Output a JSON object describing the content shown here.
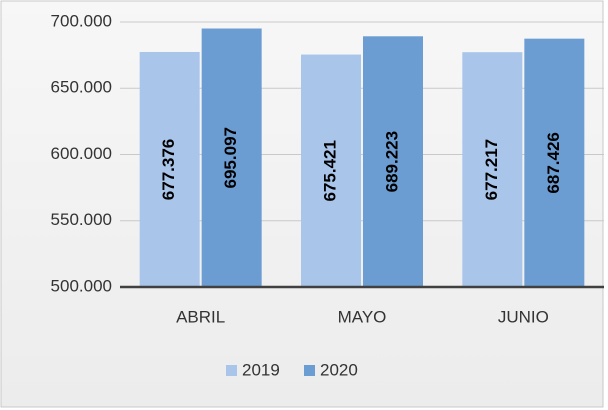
{
  "chart_data": {
    "type": "bar",
    "categories": [
      "ABRIL",
      "MAYO",
      "JUNIO"
    ],
    "series": [
      {
        "name": "2019",
        "color": "#a9c5ea",
        "values": [
          677376,
          675421,
          677217
        ],
        "value_labels": [
          "677.376",
          "675.421",
          "677.217"
        ]
      },
      {
        "name": "2020",
        "color": "#6c9dd2",
        "values": [
          695097,
          689223,
          687426
        ],
        "value_labels": [
          "695.097",
          "689.223",
          "687.426"
        ]
      }
    ],
    "ylim": [
      500000,
      700000
    ],
    "yticks": [
      {
        "value": 500000,
        "label": "500.000"
      },
      {
        "value": 550000,
        "label": "550.000"
      },
      {
        "value": 600000,
        "label": "600.000"
      },
      {
        "value": 650000,
        "label": "650.000"
      },
      {
        "value": 700000,
        "label": "700.000"
      }
    ],
    "grid": true,
    "legend": "bottom"
  }
}
